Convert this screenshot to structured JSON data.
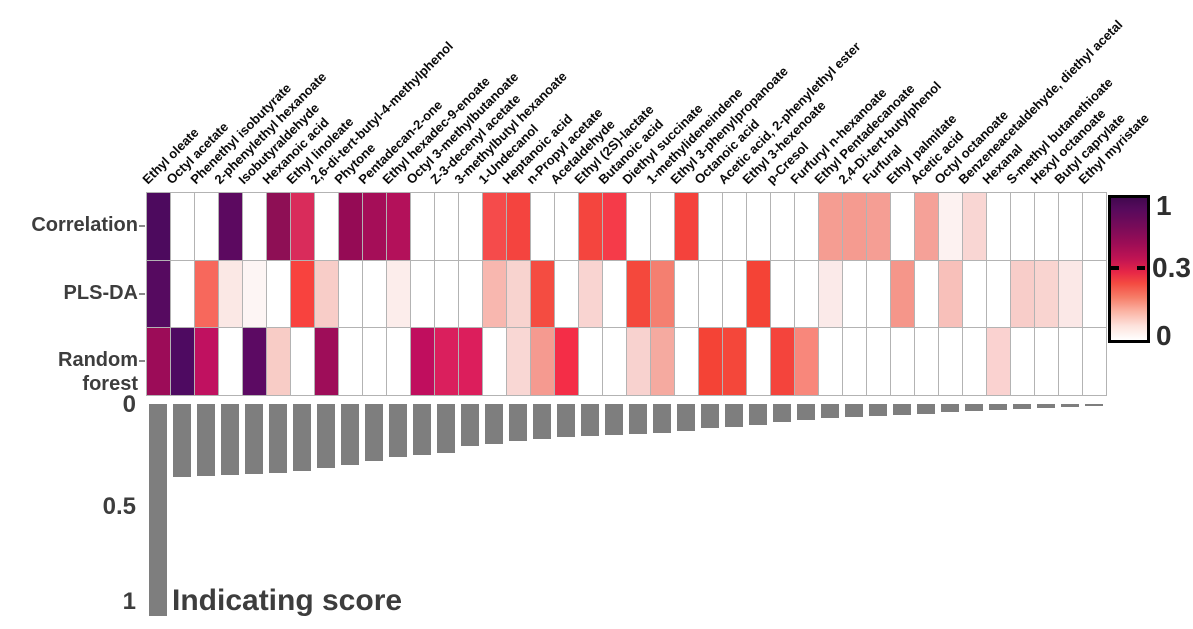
{
  "figure": {
    "row_labels": [
      "Correlation",
      "PLS-DA",
      "Random forest"
    ],
    "bar_axis_ticks": [
      "0",
      "0.5",
      "1"
    ],
    "bar_axis_title": "Indicating score",
    "colorbar": {
      "max_label": "1",
      "mid_label": "0.3",
      "min_label": "0"
    },
    "colors": {
      "bar_gray": "#7e7e7e",
      "grid_line": "#b3b3b3",
      "scale_max": "#41084f",
      "scale_mid": "#e62647",
      "scale_min": "#ffffff"
    }
  },
  "chart_data": [
    {
      "type": "heatmap",
      "title": "",
      "legend_position": "right",
      "categories": [
        "Ethyl oleate",
        "Octyl acetate",
        "Phenethyl isobutyrate",
        "2-phenylethyl hexanoate",
        "Isobutyraldehyde",
        "Hexanoic acid",
        "Ethyl linoleate",
        "2,6-di-tert-butyl-4-methylphenol",
        "Phytone",
        "Pentadecan-2-one",
        "Ethyl hexadec-9-enoate",
        "Octyl 3-methylbutanoate",
        "Z-3-decenyl acetate",
        "3-methylbutyl hexanoate",
        "1-Undecanol",
        "Heptanoic acid",
        "n-Propyl acetate",
        "Acetaldehyde",
        "Ethyl (2S)-lactate",
        "Butanoic acid",
        "Diethyl succinate",
        "1-methylideneindene",
        "Ethyl 3-phenylpropanoate",
        "Octanoic acid",
        "Acetic acid, 2-phenylethyl ester",
        "Ethyl 3-hexenoate",
        "p-Cresol",
        "Furfuryl n-hexanoate",
        "Ethyl Pentadecanoate",
        "2,4-Di-tert-butylphenol",
        "Furfural",
        "Ethyl palmitate",
        "Acetic acid",
        "Octyl octanoate",
        "Benzeneacetaldehyde, diethyl acetal",
        "Hexanal",
        "S-methyl butanethioate",
        "Hexyl octanoate",
        "Butyl caprylate",
        "Ethyl myristate"
      ],
      "series": [
        {
          "name": "Correlation",
          "colors": [
            "#4d0a5e",
            "#ffffff",
            "#ffffff",
            "#5c0960",
            "#ffffff",
            "#8e0f55",
            "#d92c5b",
            "#ffffff",
            "#950b55",
            "#a50e58",
            "#b3115a",
            "#ffffff",
            "#ffffff",
            "#ffffff",
            "#f54b4b",
            "#f4443f",
            "#ffffff",
            "#ffffff",
            "#f4453e",
            "#f53b49",
            "#ffffff",
            "#ffffff",
            "#f4423c",
            "#ffffff",
            "#ffffff",
            "#ffffff",
            "#ffffff",
            "#ffffff",
            "#f59d92",
            "#f59b90",
            "#f59e94",
            "#ffffff",
            "#f5a198",
            "#fdf2f1",
            "#f9d6d3",
            "#ffffff",
            "#ffffff",
            "#ffffff",
            "#ffffff",
            "#ffffff"
          ],
          "values_approx": [
            0.95,
            0,
            0,
            0.95,
            0,
            0.6,
            0.4,
            0,
            0.6,
            0.55,
            0.5,
            0,
            0,
            0,
            0.3,
            0.3,
            0,
            0,
            0.3,
            0.3,
            0,
            0,
            0.3,
            0,
            0,
            0,
            0,
            0,
            0.15,
            0.15,
            0.15,
            0,
            0.15,
            0.02,
            0.07,
            0,
            0,
            0,
            0,
            0
          ]
        },
        {
          "name": "PLS-DA",
          "colors": [
            "#560a60",
            "#ffffff",
            "#f7685c",
            "#fbe8e5",
            "#fdf5f4",
            "#ffffff",
            "#f8423e",
            "#f8cdc8",
            "#ffffff",
            "#ffffff",
            "#fcedeb",
            "#ffffff",
            "#ffffff",
            "#ffffff",
            "#f8b7af",
            "#f8d3cf",
            "#f44c41",
            "#ffffff",
            "#f9d4d1",
            "#ffffff",
            "#f4483c",
            "#f47f70",
            "#ffffff",
            "#ffffff",
            "#ffffff",
            "#f44336",
            "#ffffff",
            "#ffffff",
            "#fbeae9",
            "#ffffff",
            "#ffffff",
            "#f5968a",
            "#ffffff",
            "#f8c0ba",
            "#ffffff",
            "#ffffff",
            "#f8cdc9",
            "#f9d4d0",
            "#fbe8e7",
            "#ffffff"
          ],
          "values_approx": [
            0.95,
            0,
            0.25,
            0.04,
            0.02,
            0,
            0.3,
            0.07,
            0,
            0,
            0.03,
            0,
            0,
            0,
            0.1,
            0.07,
            0.3,
            0,
            0.07,
            0,
            0.3,
            0.15,
            0,
            0,
            0,
            0.3,
            0,
            0,
            0.03,
            0,
            0,
            0.15,
            0,
            0.08,
            0,
            0,
            0.07,
            0.07,
            0.04,
            0
          ]
        },
        {
          "name": "Random forest",
          "colors": [
            "#9c0c58",
            "#4e0a61",
            "#c01160",
            "#ffffff",
            "#5c0a63",
            "#f8ccc6",
            "#ffffff",
            "#9e0d59",
            "#ffffff",
            "#ffffff",
            "#ffffff",
            "#c00e5e",
            "#da1f5d",
            "#dc1e5c",
            "#ffffff",
            "#f9d7d4",
            "#f59a90",
            "#f42d47",
            "#ffffff",
            "#ffffff",
            "#f8d2cf",
            "#f5aaa0",
            "#ffffff",
            "#f44336",
            "#f4473a",
            "#ffffff",
            "#f4443c",
            "#f8877b",
            "#ffffff",
            "#ffffff",
            "#ffffff",
            "#ffffff",
            "#ffffff",
            "#ffffff",
            "#ffffff",
            "#fad2d0",
            "#ffffff",
            "#ffffff",
            "#ffffff",
            "#ffffff"
          ],
          "values_approx": [
            0.6,
            0.95,
            0.5,
            0,
            0.95,
            0.07,
            0,
            0.6,
            0,
            0,
            0,
            0.5,
            0.4,
            0.42,
            0,
            0.07,
            0.15,
            0.32,
            0,
            0,
            0.07,
            0.12,
            0,
            0.3,
            0.3,
            0,
            0.3,
            0.18,
            0,
            0,
            0,
            0,
            0,
            0,
            0,
            0.07,
            0,
            0,
            0,
            0
          ]
        }
      ],
      "colorbar": {
        "min": 0,
        "mid": 0.3,
        "max": 1,
        "tick_labels": [
          "1",
          "0.3",
          "0"
        ]
      }
    },
    {
      "type": "bar",
      "orientation": "vertical-downward",
      "ylabel": "Indicating score",
      "ylim": [
        0,
        1
      ],
      "yticks": [
        0,
        0.5,
        1
      ],
      "bar_color": "#7e7e7e",
      "categories": [
        "Ethyl oleate",
        "Octyl acetate",
        "Phenethyl isobutyrate",
        "2-phenylethyl hexanoate",
        "Isobutyraldehyde",
        "Hexanoic acid",
        "Ethyl linoleate",
        "2,6-di-tert-butyl-4-methylphenol",
        "Phytone",
        "Pentadecan-2-one",
        "Ethyl hexadec-9-enoate",
        "Octyl 3-methylbutanoate",
        "Z-3-decenyl acetate",
        "3-methylbutyl hexanoate",
        "1-Undecanol",
        "Heptanoic acid",
        "n-Propyl acetate",
        "Acetaldehyde",
        "Ethyl (2S)-lactate",
        "Butanoic acid",
        "Diethyl succinate",
        "1-methylideneindene",
        "Ethyl 3-phenylpropanoate",
        "Octanoic acid",
        "Acetic acid, 2-phenylethyl ester",
        "Ethyl 3-hexenoate",
        "p-Cresol",
        "Furfuryl n-hexanoate",
        "Ethyl Pentadecanoate",
        "2,4-Di-tert-butylphenol",
        "Furfural",
        "Ethyl palmitate",
        "Acetic acid",
        "Octyl octanoate",
        "Benzeneacetaldehyde, diethyl acetal",
        "Hexanal",
        "S-methyl butanethioate",
        "Hexyl octanoate",
        "Butyl caprylate",
        "Ethyl myristate"
      ],
      "values": [
        1.0,
        0.345,
        0.34,
        0.335,
        0.33,
        0.325,
        0.315,
        0.3,
        0.29,
        0.27,
        0.25,
        0.24,
        0.23,
        0.2,
        0.19,
        0.175,
        0.165,
        0.155,
        0.15,
        0.145,
        0.14,
        0.135,
        0.125,
        0.115,
        0.11,
        0.1,
        0.085,
        0.075,
        0.065,
        0.06,
        0.055,
        0.05,
        0.045,
        0.04,
        0.035,
        0.03,
        0.025,
        0.02,
        0.015,
        0.01
      ]
    }
  ]
}
